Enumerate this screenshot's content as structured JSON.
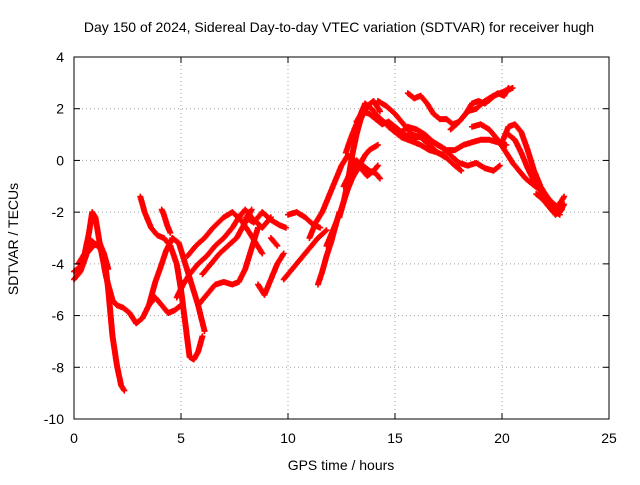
{
  "chart_data": {
    "type": "scatter",
    "title": "Day 150 of 2024, Sidereal Day-to-day VTEC variation (SDTVAR) for receiver hugh",
    "xlabel": "GPS time / hours",
    "ylabel": "SDTVAR / TECUs",
    "xlim": [
      0,
      25
    ],
    "ylim": [
      -10,
      4
    ],
    "xticks": [
      0,
      5,
      10,
      15,
      20,
      25
    ],
    "yticks": [
      -10,
      -8,
      -6,
      -4,
      -2,
      0,
      2,
      4
    ],
    "xtick_labels": [
      "0",
      "5",
      "10",
      "15",
      "20",
      "25"
    ],
    "ytick_labels": [
      "-10",
      "-8",
      "-6",
      "-4",
      "-2",
      "0",
      "2",
      "4"
    ],
    "grid": true,
    "marker": "+",
    "color": "#ff0000",
    "series": [
      {
        "name": "trace-1",
        "x": [
          0.0,
          0.3,
          0.5,
          0.7,
          0.85,
          1.0,
          1.2,
          1.5,
          1.8,
          2.0,
          2.3,
          2.6,
          2.9,
          3.2,
          3.5,
          3.8,
          4.1,
          4.4,
          4.7,
          5.0
        ],
        "y": [
          -4.3,
          -4.1,
          -3.6,
          -2.8,
          -2.0,
          -2.2,
          -3.2,
          -4.5,
          -5.4,
          -5.6,
          -5.7,
          -5.9,
          -6.3,
          -6.1,
          -5.6,
          -5.3,
          -5.6,
          -5.9,
          -5.8,
          -5.6
        ]
      },
      {
        "name": "trace-2",
        "x": [
          0.0,
          0.3,
          0.6,
          0.9,
          1.2,
          1.4,
          1.6,
          1.8,
          2.0,
          2.2,
          2.35
        ],
        "y": [
          -4.6,
          -4.3,
          -3.6,
          -3.3,
          -3.2,
          -3.6,
          -5.0,
          -6.8,
          -7.9,
          -8.7,
          -8.9
        ]
      },
      {
        "name": "trace-3",
        "x": [
          0.2,
          0.5,
          0.8,
          1.1,
          1.4,
          1.6
        ],
        "y": [
          -4.0,
          -3.6,
          -3.1,
          -3.3,
          -3.6,
          -4.2
        ]
      },
      {
        "name": "trace-4",
        "x": [
          3.1,
          3.3,
          3.6,
          3.9,
          4.2,
          4.5,
          4.8,
          5.0,
          5.2,
          5.4,
          5.6,
          5.8,
          6.0
        ],
        "y": [
          -1.4,
          -2.0,
          -2.6,
          -2.9,
          -3.0,
          -3.3,
          -4.0,
          -5.0,
          -6.3,
          -7.6,
          -7.7,
          -7.4,
          -6.8
        ]
      },
      {
        "name": "trace-5",
        "x": [
          3.5,
          3.8,
          4.1,
          4.3,
          4.6,
          4.9,
          5.2,
          5.5,
          5.8,
          6.1
        ],
        "y": [
          -5.6,
          -4.7,
          -4.0,
          -3.5,
          -3.0,
          -3.2,
          -4.0,
          -4.8,
          -5.6,
          -6.6
        ]
      },
      {
        "name": "trace-6",
        "x": [
          4.1,
          4.2,
          4.35,
          4.5
        ],
        "y": [
          -1.9,
          -2.1,
          -2.5,
          -2.8
        ]
      },
      {
        "name": "trace-7",
        "x": [
          4.8,
          5.1,
          5.4,
          5.8,
          6.2,
          6.6,
          7.0,
          7.4,
          7.7,
          8.0,
          8.4,
          8.8,
          9.2
        ],
        "y": [
          -5.3,
          -4.8,
          -4.4,
          -4.0,
          -3.7,
          -3.3,
          -3.0,
          -2.6,
          -2.2,
          -1.9,
          -2.3,
          -2.6,
          -2.2
        ]
      },
      {
        "name": "trace-8",
        "x": [
          5.3,
          5.7,
          6.1,
          6.5,
          7.0,
          7.4,
          7.8,
          8.2,
          8.5,
          8.8
        ],
        "y": [
          -3.7,
          -3.3,
          -3.0,
          -2.6,
          -2.2,
          -2.0,
          -2.3,
          -2.8,
          -3.2,
          -3.6
        ]
      },
      {
        "name": "trace-9",
        "x": [
          5.8,
          6.2,
          6.6,
          7.0,
          7.4,
          7.7,
          8.0,
          8.3,
          8.6
        ],
        "y": [
          -5.6,
          -5.2,
          -4.8,
          -4.7,
          -4.8,
          -4.7,
          -4.2,
          -3.4,
          -2.6
        ]
      },
      {
        "name": "trace-10",
        "x": [
          6.0,
          6.4,
          6.8,
          7.2,
          7.6,
          8.0,
          8.3
        ],
        "y": [
          -4.4,
          -4.0,
          -3.6,
          -3.3,
          -3.0,
          -2.4,
          -1.9
        ]
      },
      {
        "name": "trace-11",
        "x": [
          8.0,
          8.4,
          8.8,
          9.2,
          9.6,
          9.9
        ],
        "y": [
          -2.2,
          -2.4,
          -2.0,
          -2.3,
          -2.5,
          -2.6
        ]
      },
      {
        "name": "trace-12",
        "x": [
          8.6,
          8.9,
          9.2,
          9.5,
          9.8
        ],
        "y": [
          -4.8,
          -5.2,
          -4.6,
          -4.0,
          -3.6
        ]
      },
      {
        "name": "trace-13",
        "x": [
          9.2,
          9.5
        ],
        "y": [
          -3.0,
          -3.3
        ]
      },
      {
        "name": "trace-14",
        "x": [
          9.8,
          10.2,
          10.6,
          11.0,
          11.4,
          11.8
        ],
        "y": [
          -4.6,
          -4.2,
          -3.8,
          -3.4,
          -3.0,
          -2.7
        ]
      },
      {
        "name": "trace-15",
        "x": [
          10.0,
          10.4,
          10.8,
          11.2,
          11.5
        ],
        "y": [
          -2.1,
          -2.0,
          -2.2,
          -2.5,
          -2.6
        ]
      },
      {
        "name": "trace-16",
        "x": [
          11.0,
          11.3,
          11.6,
          11.9,
          12.2,
          12.5,
          12.8,
          13.1,
          13.4,
          13.7,
          14.0,
          14.2
        ],
        "y": [
          -3.0,
          -2.4,
          -2.0,
          -1.4,
          -0.8,
          -0.2,
          0.2,
          0.0,
          -0.3,
          -0.6,
          -0.4,
          -0.2
        ]
      },
      {
        "name": "trace-17",
        "x": [
          11.4,
          11.6,
          11.8,
          12.0,
          12.2,
          12.4
        ],
        "y": [
          -4.8,
          -4.3,
          -3.7,
          -3.2,
          -2.6,
          -2.0
        ]
      },
      {
        "name": "trace-18",
        "x": [
          11.8,
          12.0,
          12.2,
          12.4,
          12.6,
          12.8,
          13.0,
          13.2,
          13.4,
          13.6,
          13.8,
          14.0,
          14.2
        ],
        "y": [
          -3.3,
          -2.9,
          -2.5,
          -2.1,
          -1.6,
          -1.1,
          -0.7,
          -0.4,
          -0.1,
          0.2,
          0.4,
          0.5,
          0.6
        ]
      },
      {
        "name": "trace-19",
        "x": [
          12.4,
          12.6,
          12.8,
          13.0,
          13.2,
          13.4,
          13.7,
          14.0,
          14.3
        ],
        "y": [
          -2.2,
          -1.6,
          -0.8,
          0.2,
          1.0,
          1.6,
          2.1,
          2.3,
          1.9
        ]
      },
      {
        "name": "trace-20",
        "x": [
          12.6,
          12.9,
          13.2,
          13.5,
          13.8,
          14.1,
          14.3
        ],
        "y": [
          -1.0,
          -0.5,
          0.0,
          -0.2,
          -0.4,
          -0.5,
          -0.7
        ]
      },
      {
        "name": "trace-21",
        "x": [
          12.7,
          13.0,
          13.3,
          13.6,
          13.9,
          14.2,
          14.6,
          15.0,
          15.4,
          15.8,
          16.2,
          16.6,
          17.0,
          17.4,
          17.8,
          18.1
        ],
        "y": [
          0.3,
          1.0,
          1.6,
          2.2,
          2.0,
          1.7,
          1.4,
          1.1,
          1.0,
          0.9,
          0.9,
          0.6,
          0.3,
          0.1,
          -0.2,
          -0.4
        ]
      },
      {
        "name": "trace-22",
        "x": [
          13.2,
          13.5,
          13.8,
          14.1,
          14.4,
          14.7,
          15.0,
          15.3,
          15.6,
          16.0,
          16.4,
          16.8,
          17.2,
          17.6,
          18.0,
          18.4,
          18.8,
          19.2,
          19.6,
          19.9
        ],
        "y": [
          1.5,
          1.9,
          1.8,
          1.6,
          1.4,
          1.5,
          1.3,
          1.1,
          1.3,
          1.2,
          1.0,
          0.7,
          0.5,
          0.2,
          -0.1,
          -0.2,
          -0.1,
          -0.3,
          -0.4,
          -0.2
        ]
      },
      {
        "name": "trace-23",
        "x": [
          14.2,
          14.6,
          15.0,
          15.4,
          15.8,
          16.2,
          16.6,
          17.0,
          17.4,
          17.8,
          18.2,
          18.6,
          19.0,
          19.4,
          19.8,
          20.2
        ],
        "y": [
          2.3,
          2.1,
          1.8,
          1.4,
          1.0,
          0.9,
          0.8,
          0.6,
          0.4,
          0.4,
          0.6,
          0.7,
          0.8,
          0.8,
          0.7,
          0.6
        ]
      },
      {
        "name": "trace-24",
        "x": [
          14.7,
          15.0,
          15.3,
          15.6,
          15.9,
          16.2,
          16.6,
          17.0,
          17.3
        ],
        "y": [
          1.3,
          1.1,
          0.9,
          0.8,
          0.7,
          0.6,
          0.4,
          0.3,
          0.2
        ]
      },
      {
        "name": "trace-25",
        "x": [
          15.6,
          15.9,
          16.2,
          16.5,
          16.8,
          17.1,
          17.4,
          17.7,
          18.0,
          18.3,
          18.6,
          18.9,
          19.2,
          19.5,
          19.8,
          20.1,
          20.3
        ],
        "y": [
          2.6,
          2.4,
          2.5,
          2.2,
          1.8,
          1.6,
          1.6,
          1.4,
          1.5,
          1.8,
          2.2,
          2.3,
          2.2,
          2.4,
          2.6,
          2.5,
          2.8
        ]
      },
      {
        "name": "trace-26",
        "x": [
          17.6,
          18.0,
          18.4,
          18.8,
          19.2,
          19.6,
          19.9,
          20.2,
          20.5
        ],
        "y": [
          1.2,
          1.5,
          1.9,
          2.0,
          2.3,
          2.5,
          2.6,
          2.7,
          2.8
        ]
      },
      {
        "name": "trace-27",
        "x": [
          18.6,
          19.0,
          19.4,
          19.8,
          20.2,
          20.5,
          20.8,
          21.1,
          21.4,
          21.7,
          22.0,
          22.3,
          22.6,
          22.9
        ],
        "y": [
          1.3,
          1.4,
          1.2,
          0.8,
          0.3,
          -0.1,
          -0.4,
          -0.7,
          -0.9,
          -1.1,
          -1.3,
          -1.6,
          -1.8,
          -1.4
        ]
      },
      {
        "name": "trace-28",
        "x": [
          20.0,
          20.3,
          20.6,
          20.9,
          21.2,
          21.5,
          21.8,
          22.1,
          22.4,
          22.7,
          22.9
        ],
        "y": [
          0.7,
          1.3,
          1.4,
          1.1,
          0.4,
          -0.4,
          -1.0,
          -1.4,
          -1.8,
          -2.0,
          -1.7
        ]
      },
      {
        "name": "trace-29",
        "x": [
          20.3,
          20.6,
          20.9,
          21.2,
          21.5,
          21.8,
          22.1,
          22.4,
          22.7
        ],
        "y": [
          1.0,
          0.8,
          0.3,
          -0.3,
          -0.8,
          -1.2,
          -1.6,
          -1.9,
          -2.1
        ]
      },
      {
        "name": "trace-30",
        "x": [
          21.6,
          21.9,
          22.2,
          22.5,
          22.8
        ],
        "y": [
          -1.3,
          -1.5,
          -1.8,
          -2.1,
          -1.9
        ]
      }
    ]
  }
}
